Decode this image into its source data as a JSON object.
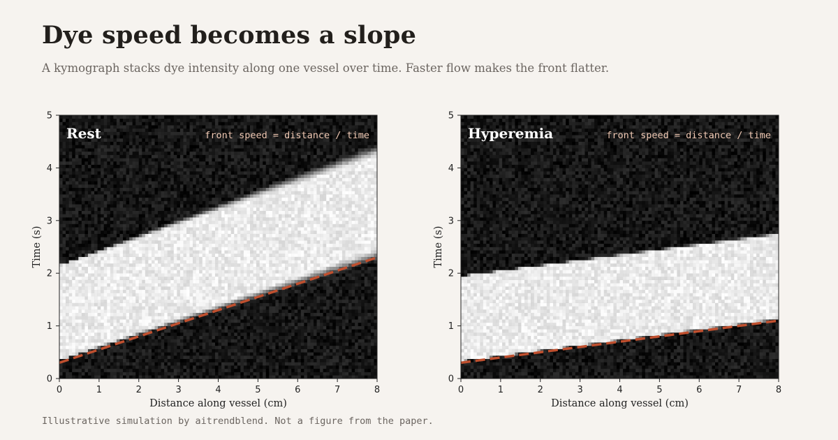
{
  "header": {
    "title": "Dye speed becomes a slope",
    "subtitle": "A kymograph stacks dye intensity along one vessel over time. Faster flow makes the front flatter."
  },
  "footer": {
    "note": "Illustrative simulation by aitrendblend. Not a figure from the paper."
  },
  "colors": {
    "background": "#f6f3ef",
    "fit_line": "#c0502f",
    "annotation": "#f0c9b4"
  },
  "chart_data": [
    {
      "type": "heatmap",
      "title": "Rest",
      "annotation": "front speed = distance / time",
      "xlabel": "Distance along vessel (cm)",
      "ylabel": "Time (s)",
      "xlim": [
        0,
        8
      ],
      "ylim": [
        0,
        5
      ],
      "xticks": [
        "0",
        "1",
        "2",
        "3",
        "4",
        "5",
        "6",
        "7",
        "8"
      ],
      "yticks": [
        "0",
        "1",
        "2",
        "3",
        "4",
        "5"
      ],
      "dye_band": {
        "front_start": 0.35,
        "front_end": 2.35,
        "back_start": 2.15,
        "back_end": 4.35
      },
      "front_line": {
        "x": [
          0,
          8
        ],
        "y": [
          0.3,
          2.3
        ]
      },
      "grid": false
    },
    {
      "type": "heatmap",
      "title": "Hyperemia",
      "annotation": "front speed = distance / time",
      "xlabel": "Distance along vessel (cm)",
      "ylabel": "Time (s)",
      "xlim": [
        0,
        8
      ],
      "ylim": [
        0,
        5
      ],
      "xticks": [
        "0",
        "1",
        "2",
        "3",
        "4",
        "5",
        "6",
        "7",
        "8"
      ],
      "yticks": [
        "0",
        "1",
        "2",
        "3",
        "4",
        "5"
      ],
      "dye_band": {
        "front_start": 0.33,
        "front_end": 1.13,
        "back_start": 1.95,
        "back_end": 2.75
      },
      "front_line": {
        "x": [
          0,
          8
        ],
        "y": [
          0.3,
          1.1
        ]
      },
      "grid": false
    }
  ]
}
